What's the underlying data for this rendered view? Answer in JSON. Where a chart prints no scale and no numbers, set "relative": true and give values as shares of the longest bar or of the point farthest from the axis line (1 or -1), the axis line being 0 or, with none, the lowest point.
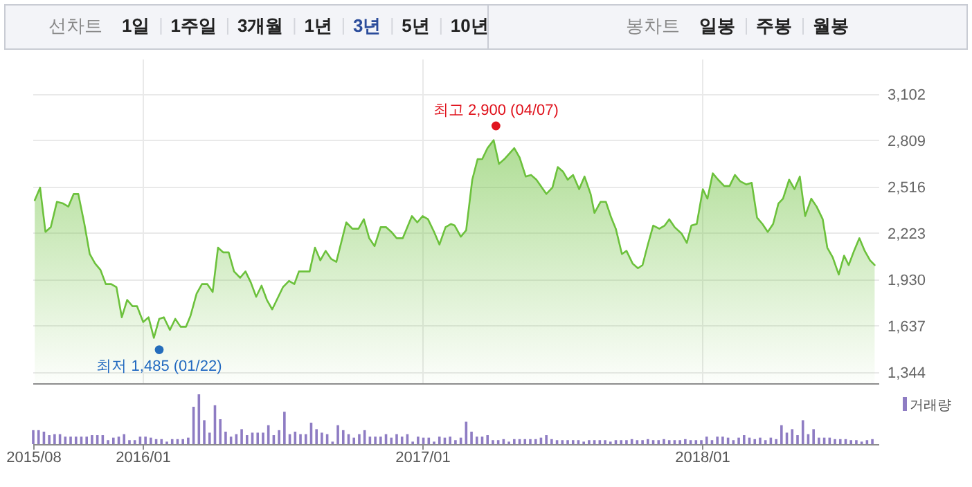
{
  "chart_data": [
    {
      "type": "other",
      "annotations": [
        "선차트",
        "1일",
        "1주일",
        "3개월",
        "1년",
        "3년",
        "5년",
        "10년",
        "봉차트",
        "일봉",
        "주봉",
        "월봉"
      ]
    },
    {
      "type": "area",
      "xlim": [
        "2015-08-10",
        "2018-08-22"
      ],
      "ylim": [
        1273,
        3320
      ],
      "yticks": [
        {
          "value": 1344,
          "label": "1,344"
        },
        {
          "value": 1637,
          "label": "1,637"
        },
        {
          "value": 1930,
          "label": "1,930"
        },
        {
          "value": 2223,
          "label": "2,223"
        },
        {
          "value": 2516,
          "label": "2,516"
        },
        {
          "value": 2809,
          "label": "2,809"
        },
        {
          "value": 3102,
          "label": "3,102"
        }
      ],
      "xticks": [
        {
          "value": "2016-01-01",
          "label": null
        },
        {
          "value": "2017-01-01",
          "label": null
        },
        {
          "value": "2018-01-01",
          "label": null
        }
      ],
      "tick_labels": "y",
      "grid": true,
      "series": [
        {
          "type": "scatter",
          "x": [
            "2017-04-07",
            "2016-01-22"
          ],
          "values": [
            2900,
            1485
          ],
          "colors": [
            "#e0141e",
            "#1d64c8"
          ],
          "value_labels": [
            "최고 2,900 (04/07)",
            "최저 1,485 (01/22)"
          ]
        },
        {
          "color": "#6cc13c",
          "x": [
            "2015-08-12",
            "2015-08-19",
            "2015-08-26",
            "2015-09-02",
            "2015-09-10",
            "2015-09-18",
            "2015-09-25",
            "2015-10-02",
            "2015-10-08",
            "2015-10-16",
            "2015-10-23",
            "2015-10-30",
            "2015-11-06",
            "2015-11-13",
            "2015-11-20",
            "2015-11-27",
            "2015-12-04",
            "2015-12-11",
            "2015-12-18",
            "2015-12-24",
            "2016-01-01",
            "2016-01-08",
            "2016-01-15",
            "2016-01-22",
            "2016-01-28",
            "2016-02-05",
            "2016-02-12",
            "2016-02-19",
            "2016-02-26",
            "2016-03-03",
            "2016-03-11",
            "2016-03-18",
            "2016-03-25",
            "2016-04-01",
            "2016-04-08",
            "2016-04-15",
            "2016-04-22",
            "2016-04-29",
            "2016-05-07",
            "2016-05-14",
            "2016-05-21",
            "2016-05-28",
            "2016-06-04",
            "2016-06-11",
            "2016-06-18",
            "2016-06-25",
            "2016-07-02",
            "2016-07-10",
            "2016-07-17",
            "2016-07-23",
            "2016-07-30",
            "2016-08-06",
            "2016-08-13",
            "2016-08-20",
            "2016-08-27",
            "2016-09-03",
            "2016-09-10",
            "2016-09-23",
            "2016-10-01",
            "2016-10-09",
            "2016-10-16",
            "2016-10-23",
            "2016-10-30",
            "2016-11-07",
            "2016-11-14",
            "2016-11-21",
            "2016-11-28",
            "2016-12-06",
            "2016-12-18",
            "2016-12-25",
            "2017-01-01",
            "2017-01-08",
            "2017-01-16",
            "2017-01-23",
            "2017-01-31",
            "2017-02-07",
            "2017-02-12",
            "2017-02-20",
            "2017-02-27",
            "2017-03-07",
            "2017-03-14",
            "2017-03-20",
            "2017-03-27",
            "2017-04-04",
            "2017-04-11",
            "2017-04-18",
            "2017-05-01",
            "2017-05-08",
            "2017-05-16",
            "2017-05-23",
            "2017-05-30",
            "2017-06-12",
            "2017-06-20",
            "2017-06-27",
            "2017-07-04",
            "2017-07-10",
            "2017-07-17",
            "2017-07-25",
            "2017-08-01",
            "2017-08-09",
            "2017-08-14",
            "2017-08-22",
            "2017-08-29",
            "2017-09-05",
            "2017-09-11",
            "2017-09-19",
            "2017-09-25",
            "2017-10-03",
            "2017-10-10",
            "2017-10-16",
            "2017-10-23",
            "2017-10-30",
            "2017-11-07",
            "2017-11-14",
            "2017-11-20",
            "2017-11-27",
            "2017-12-06",
            "2017-12-13",
            "2017-12-19",
            "2017-12-26",
            "2018-01-03",
            "2018-01-09",
            "2018-01-16",
            "2018-01-23",
            "2018-01-31",
            "2018-02-07",
            "2018-02-14",
            "2018-02-21",
            "2018-03-01",
            "2018-03-08",
            "2018-03-15",
            "2018-03-22",
            "2018-03-29",
            "2018-04-05",
            "2018-04-12",
            "2018-04-18",
            "2018-04-26",
            "2018-05-03",
            "2018-05-10",
            "2018-05-17",
            "2018-05-25",
            "2018-06-01",
            "2018-06-09",
            "2018-06-15",
            "2018-06-22",
            "2018-06-30",
            "2018-07-07",
            "2018-07-13",
            "2018-07-20",
            "2018-07-27",
            "2018-08-03",
            "2018-08-10",
            "2018-08-16"
          ],
          "values": [
            2430,
            2510,
            2230,
            2260,
            2420,
            2410,
            2390,
            2470,
            2470,
            2280,
            2090,
            2030,
            1990,
            1900,
            1900,
            1880,
            1690,
            1800,
            1760,
            1760,
            1660,
            1690,
            1560,
            1680,
            1690,
            1610,
            1680,
            1630,
            1630,
            1700,
            1840,
            1900,
            1900,
            1850,
            2130,
            2100,
            2100,
            1980,
            1940,
            1980,
            1910,
            1820,
            1890,
            1800,
            1740,
            1810,
            1880,
            1920,
            1900,
            1980,
            1980,
            1980,
            2130,
            2050,
            2110,
            2060,
            2040,
            2290,
            2250,
            2250,
            2310,
            2190,
            2140,
            2260,
            2260,
            2230,
            2190,
            2190,
            2330,
            2290,
            2330,
            2310,
            2230,
            2150,
            2260,
            2280,
            2270,
            2200,
            2240,
            2560,
            2690,
            2690,
            2760,
            2810,
            2660,
            2690,
            2760,
            2700,
            2580,
            2590,
            2560,
            2470,
            2510,
            2640,
            2610,
            2560,
            2590,
            2500,
            2580,
            2470,
            2350,
            2420,
            2420,
            2320,
            2250,
            2090,
            2110,
            2030,
            2000,
            2020,
            2150,
            2270,
            2250,
            2270,
            2310,
            2260,
            2220,
            2160,
            2270,
            2280,
            2500,
            2440,
            2600,
            2560,
            2520,
            2520,
            2590,
            2550,
            2530,
            2540,
            2320,
            2280,
            2230,
            2280,
            2410,
            2440,
            2560,
            2500,
            2580,
            2330,
            2440,
            2390,
            2310,
            2130,
            2070,
            1960,
            2080,
            2020,
            2110,
            2190,
            2110,
            2050,
            2020
          ]
        }
      ]
    },
    {
      "type": "bar",
      "relative": true,
      "xlim": [
        "2015-08-10",
        "2018-08-22"
      ],
      "xticks": [
        {
          "value": "2015-08-10",
          "label": "2015/08"
        },
        {
          "value": "2016-01-01",
          "label": "2016/01"
        },
        {
          "value": "2017-01-01",
          "label": "2017/01"
        },
        {
          "value": "2018-01-01",
          "label": "2018/01"
        }
      ],
      "tick_labels": "x",
      "legend": "top right",
      "series": [
        {
          "name": "거래량",
          "color": "#8e7cc3",
          "x": [
            "2015-08-10",
            "2015-08-17",
            "2015-08-24",
            "2015-08-31",
            "2015-09-07",
            "2015-09-14",
            "2015-09-21",
            "2015-09-28",
            "2015-10-05",
            "2015-10-12",
            "2015-10-19",
            "2015-10-26",
            "2015-11-02",
            "2015-11-09",
            "2015-11-16",
            "2015-11-23",
            "2015-11-30",
            "2015-12-07",
            "2015-12-14",
            "2015-12-21",
            "2015-12-28",
            "2016-01-04",
            "2016-01-11",
            "2016-01-18",
            "2016-01-25",
            "2016-02-01",
            "2016-02-08",
            "2016-02-15",
            "2016-02-22",
            "2016-02-29",
            "2016-03-07",
            "2016-03-14",
            "2016-03-21",
            "2016-03-28",
            "2016-04-04",
            "2016-04-11",
            "2016-04-18",
            "2016-04-25",
            "2016-05-02",
            "2016-05-09",
            "2016-05-16",
            "2016-05-23",
            "2016-05-30",
            "2016-06-06",
            "2016-06-13",
            "2016-06-20",
            "2016-06-27",
            "2016-07-04",
            "2016-07-11",
            "2016-07-18",
            "2016-07-25",
            "2016-08-01",
            "2016-08-08",
            "2016-08-15",
            "2016-08-22",
            "2016-08-29",
            "2016-09-05",
            "2016-09-12",
            "2016-09-19",
            "2016-09-26",
            "2016-10-03",
            "2016-10-10",
            "2016-10-17",
            "2016-10-24",
            "2016-10-31",
            "2016-11-07",
            "2016-11-14",
            "2016-11-21",
            "2016-11-28",
            "2016-12-05",
            "2016-12-12",
            "2016-12-19",
            "2016-12-26",
            "2017-01-02",
            "2017-01-09",
            "2017-01-16",
            "2017-01-23",
            "2017-01-30",
            "2017-02-06",
            "2017-02-13",
            "2017-02-20",
            "2017-02-27",
            "2017-03-06",
            "2017-03-13",
            "2017-03-20",
            "2017-03-27",
            "2017-04-03",
            "2017-04-10",
            "2017-04-17",
            "2017-04-24",
            "2017-05-01",
            "2017-05-08",
            "2017-05-15",
            "2017-05-22",
            "2017-05-29",
            "2017-06-05",
            "2017-06-12",
            "2017-06-19",
            "2017-06-26",
            "2017-07-03",
            "2017-07-10",
            "2017-07-17",
            "2017-07-24",
            "2017-07-31",
            "2017-08-07",
            "2017-08-14",
            "2017-08-21",
            "2017-08-28",
            "2017-09-04",
            "2017-09-11",
            "2017-09-18",
            "2017-09-25",
            "2017-10-02",
            "2017-10-09",
            "2017-10-16",
            "2017-10-23",
            "2017-10-30",
            "2017-11-06",
            "2017-11-13",
            "2017-11-20",
            "2017-11-27",
            "2017-12-04",
            "2017-12-11",
            "2017-12-18",
            "2017-12-25",
            "2018-01-01",
            "2018-01-08",
            "2018-01-15",
            "2018-01-22",
            "2018-01-29",
            "2018-02-05",
            "2018-02-12",
            "2018-02-19",
            "2018-02-26",
            "2018-03-05",
            "2018-03-12",
            "2018-03-19",
            "2018-03-26",
            "2018-04-02",
            "2018-04-09",
            "2018-04-16",
            "2018-04-23",
            "2018-04-30",
            "2018-05-07",
            "2018-05-14",
            "2018-05-21",
            "2018-05-28",
            "2018-06-04",
            "2018-06-11",
            "2018-06-18",
            "2018-06-25",
            "2018-07-02",
            "2018-07-09",
            "2018-07-16",
            "2018-07-23",
            "2018-07-30",
            "2018-08-06",
            "2018-08-13"
          ],
          "values": [
            0.28,
            0.28,
            0.25,
            0.18,
            0.2,
            0.2,
            0.15,
            0.15,
            0.15,
            0.15,
            0.15,
            0.18,
            0.18,
            0.18,
            0.08,
            0.13,
            0.15,
            0.2,
            0.08,
            0.08,
            0.15,
            0.15,
            0.13,
            0.1,
            0.1,
            0.05,
            0.1,
            0.1,
            0.1,
            0.13,
            0.75,
            1,
            0.48,
            0.23,
            0.78,
            0.5,
            0.25,
            0.15,
            0.2,
            0.3,
            0.18,
            0.23,
            0.23,
            0.23,
            0.38,
            0.18,
            0.28,
            0.65,
            0.2,
            0.25,
            0.2,
            0.2,
            0.43,
            0.3,
            0.23,
            0.2,
            0.05,
            0.38,
            0.28,
            0.2,
            0.13,
            0.2,
            0.28,
            0.15,
            0.15,
            0.15,
            0.2,
            0.13,
            0.2,
            0.15,
            0.2,
            0.05,
            0.15,
            0.13,
            0.13,
            0.05,
            0.15,
            0.13,
            0.15,
            0.08,
            0.13,
            0.45,
            0.25,
            0.15,
            0.15,
            0.18,
            0.08,
            0.08,
            0.1,
            0.05,
            0.1,
            0.1,
            0.1,
            0.1,
            0.1,
            0.13,
            0.18,
            0.1,
            0.08,
            0.08,
            0.08,
            0.08,
            0.08,
            0.05,
            0.08,
            0.08,
            0.08,
            0.08,
            0.05,
            0.08,
            0.08,
            0.08,
            0.1,
            0.08,
            0.08,
            0.1,
            0.08,
            0.08,
            0.1,
            0.08,
            0.08,
            0.08,
            0.1,
            0.08,
            0.08,
            0.08,
            0.15,
            0.08,
            0.15,
            0.15,
            0.13,
            0.08,
            0.13,
            0.18,
            0.13,
            0.1,
            0.13,
            0.08,
            0.13,
            0.1,
            0.38,
            0.23,
            0.3,
            0.18,
            0.48,
            0.2,
            0.3,
            0.13,
            0.13,
            0.13,
            0.1,
            0.1,
            0.1,
            0.08,
            0.08,
            0.05,
            0.08,
            0.1
          ]
        }
      ]
    }
  ]
}
